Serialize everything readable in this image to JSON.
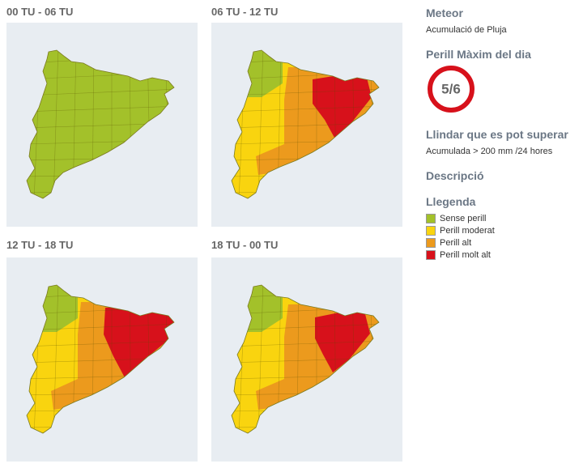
{
  "panels": [
    {
      "title": "00 TU - 06 TU"
    },
    {
      "title": "06 TU - 12 TU"
    },
    {
      "title": "12 TU - 18 TU"
    },
    {
      "title": "18 TU - 00 TU"
    }
  ],
  "sidebar": {
    "meteor_heading": "Meteor",
    "meteor": "Acumulació de Pluja",
    "danger_heading": "Perill Màxim del dia",
    "danger": "5/6",
    "threshold_heading": "Llindar que es pot superar",
    "threshold": "Acumulada > 200 mm /24 hores",
    "description_heading": "Descripció",
    "legend_heading": "Llegenda",
    "legend": [
      {
        "label": "Sense perill",
        "color": "#a3c12a"
      },
      {
        "label": "Perill moderat",
        "color": "#f9d40f"
      },
      {
        "label": "Perill alt",
        "color": "#ec9a1d"
      },
      {
        "label": "Perill molt alt",
        "color": "#d7111b"
      }
    ]
  }
}
